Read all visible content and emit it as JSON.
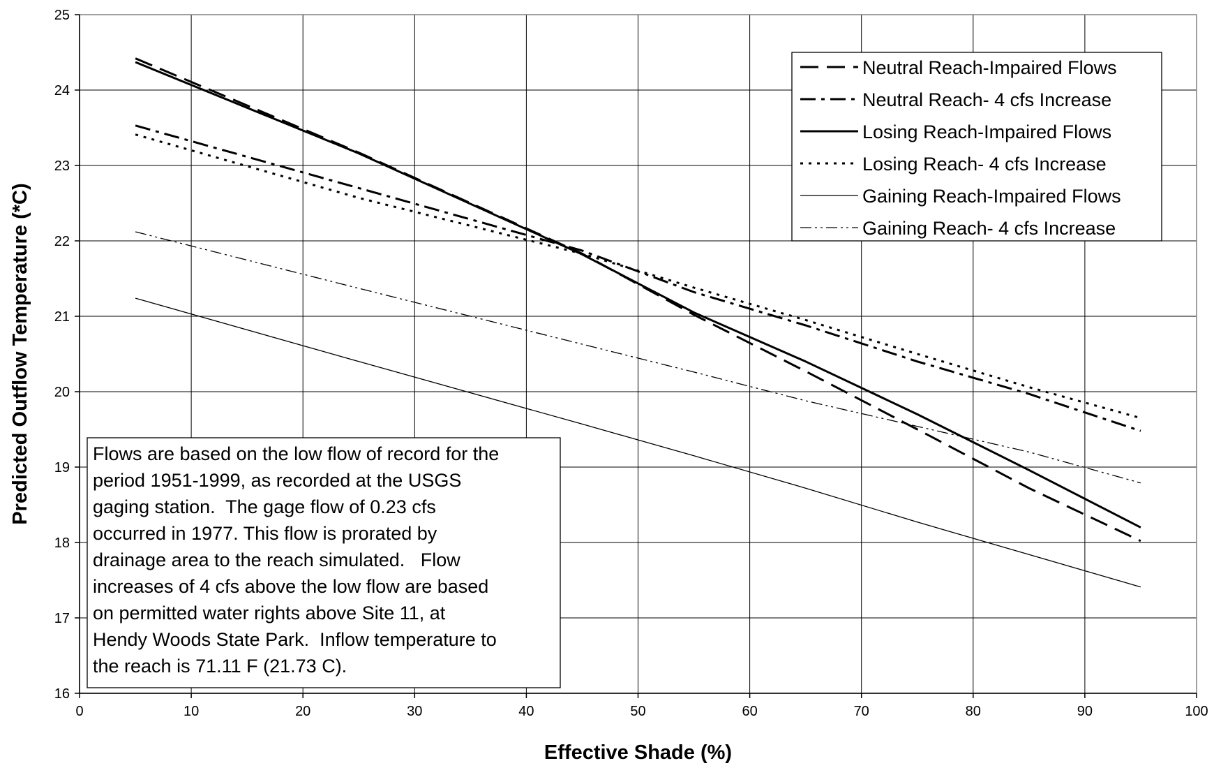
{
  "chart_data": {
    "type": "line",
    "xlabel": "Effective Shade (%)",
    "ylabel": "Predicted Outflow Temperature (*C)",
    "xlim": [
      0,
      100
    ],
    "ylim": [
      16,
      25
    ],
    "x_ticks": [
      "0",
      "10",
      "20",
      "30",
      "40",
      "50",
      "60",
      "70",
      "80",
      "90",
      "100"
    ],
    "y_ticks": [
      "16",
      "17",
      "18",
      "19",
      "20",
      "21",
      "22",
      "23",
      "24",
      "25"
    ],
    "grid": true,
    "legend_position": "top-right",
    "series": [
      {
        "name": "Neutral Reach-Impaired Flows",
        "style": "long-dash",
        "weight": "heavy",
        "color": "#000000",
        "x": [
          5,
          25,
          45,
          55,
          65,
          75,
          85,
          95
        ],
        "y": [
          24.42,
          23.17,
          21.83,
          21.02,
          20.27,
          19.5,
          18.72,
          18.02
        ]
      },
      {
        "name": "Neutral Reach- 4 cfs Increase",
        "style": "dash-dot",
        "weight": "heavy",
        "color": "#000000",
        "x": [
          5,
          25,
          45,
          55,
          65,
          75,
          85,
          95
        ],
        "y": [
          23.53,
          22.7,
          21.87,
          21.32,
          20.88,
          20.4,
          19.97,
          19.48
        ]
      },
      {
        "name": "Losing Reach-Impaired Flows",
        "style": "solid",
        "weight": "heavy",
        "color": "#000000",
        "x": [
          5,
          25,
          45,
          55,
          65,
          75,
          85,
          95
        ],
        "y": [
          24.37,
          23.16,
          21.82,
          21.05,
          20.4,
          19.7,
          18.96,
          18.2
        ]
      },
      {
        "name": "Losing Reach- 4 cfs Increase",
        "style": "dotted",
        "weight": "heavy",
        "color": "#000000",
        "x": [
          5,
          25,
          45,
          55,
          65,
          75,
          85,
          95
        ],
        "y": [
          23.41,
          22.57,
          21.83,
          21.38,
          20.95,
          20.5,
          20.06,
          19.65
        ]
      },
      {
        "name": "Gaining Reach-Impaired Flows",
        "style": "solid",
        "weight": "light",
        "color": "#000000",
        "x": [
          5,
          25,
          45,
          55,
          65,
          75,
          85,
          95
        ],
        "y": [
          21.24,
          20.4,
          19.57,
          19.15,
          18.72,
          18.27,
          17.84,
          17.41
        ]
      },
      {
        "name": "Gaining Reach- 4 cfs Increase",
        "style": "dash-dot-dot",
        "weight": "light",
        "color": "#000000",
        "x": [
          5,
          25,
          45,
          55,
          65,
          75,
          85,
          95
        ],
        "y": [
          22.12,
          21.37,
          20.63,
          20.26,
          19.88,
          19.54,
          19.2,
          18.79
        ]
      }
    ],
    "annotation": [
      "Flows are based on the low flow of record for the",
      "period 1951-1999, as recorded at the USGS",
      "gaging station.  The gage flow of 0.23 cfs",
      "occurred in 1977. This flow is prorated by",
      "drainage area to the reach simulated.   Flow",
      "increases of 4 cfs above the low flow are based",
      "on permitted water rights above Site 11, at",
      "Hendy Woods State Park.  Inflow temperature to",
      "the reach is 71.11 F (21.73 C)."
    ]
  }
}
